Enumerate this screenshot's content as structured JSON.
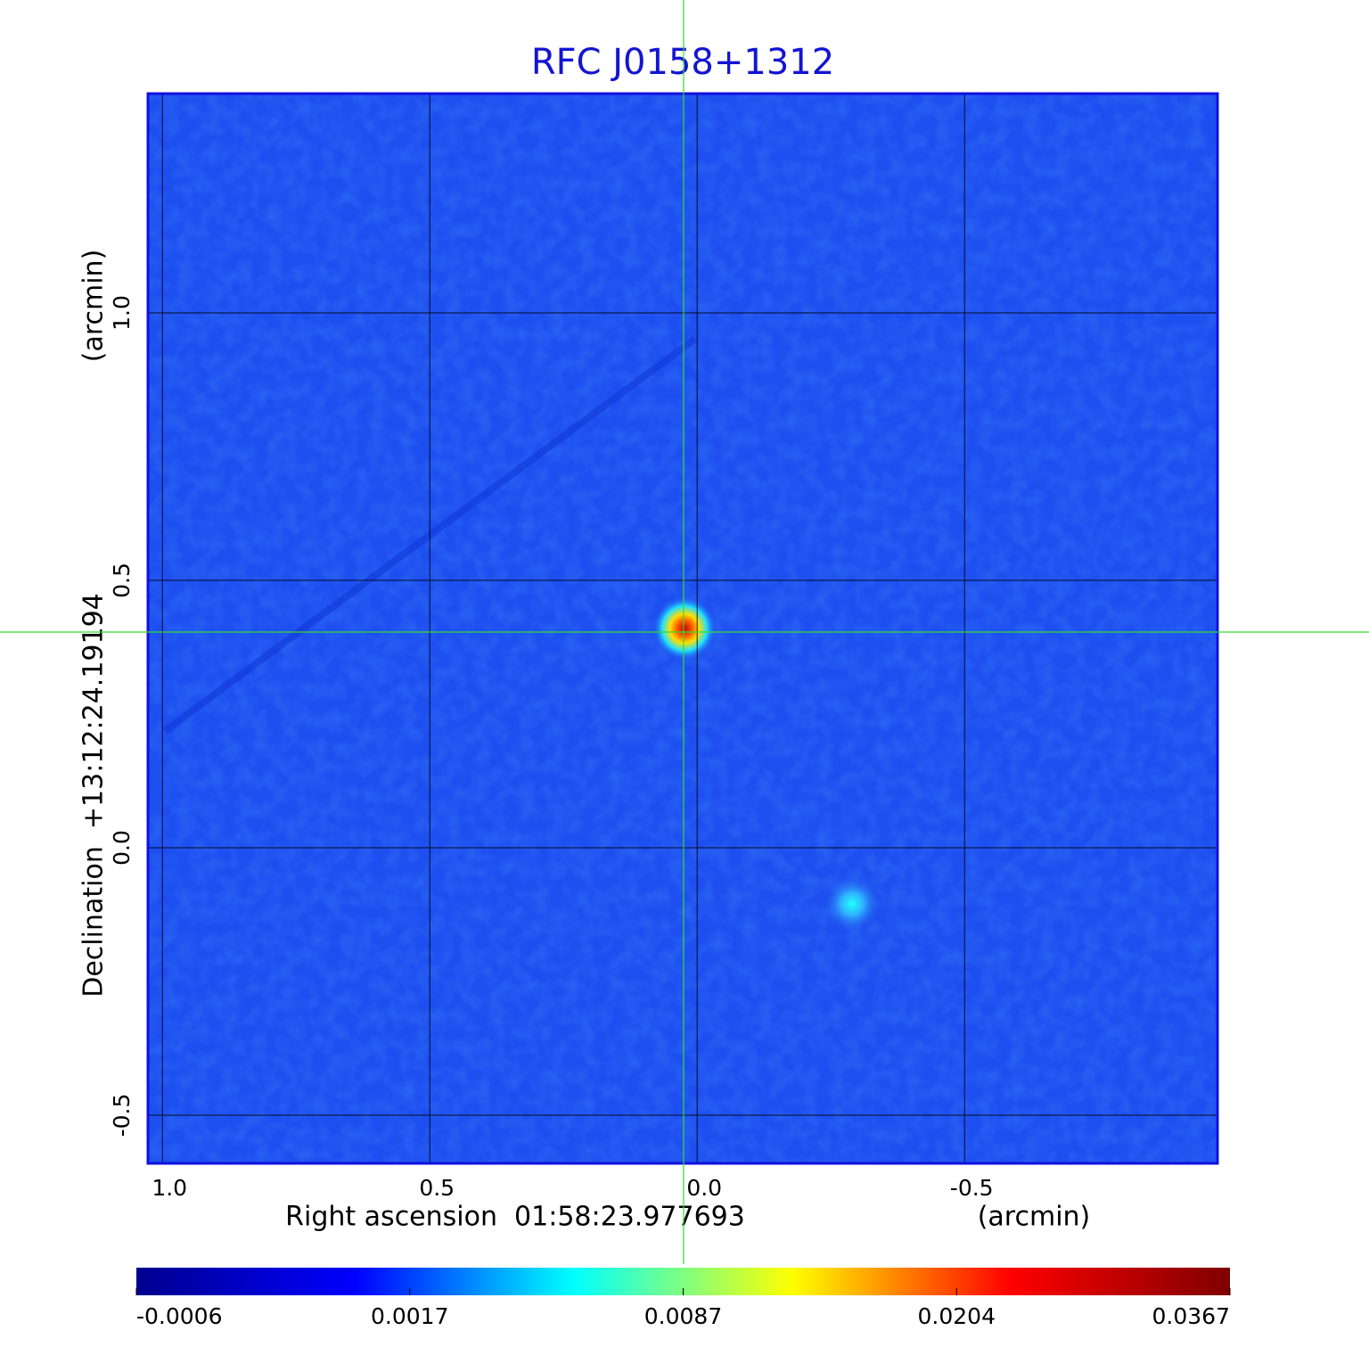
{
  "chart_data": {
    "type": "image",
    "title": "RFC J0158+1312",
    "x_label": "Right ascension  01:58:23.977693",
    "x_unit": "(arcmin)",
    "y_label": "Declination  +13:12:24.19194",
    "y_unit": "(arcmin)",
    "xlim": [
      1.027,
      -0.973
    ],
    "ylim": [
      -0.59,
      1.41
    ],
    "xticks": [
      {
        "value": 1,
        "label": "1.0"
      },
      0.5,
      {
        "value": 0,
        "label": "0.0"
      },
      -0.5
    ],
    "yticks": [
      {
        "value": 1,
        "label": "1.0"
      },
      0.5,
      {
        "value": 0,
        "label": "0.0"
      },
      -0.5
    ],
    "grid": true,
    "colorbar": {
      "ticks": [
        -0.0006,
        0.0017,
        0.0087,
        0.0204,
        0.0367
      ],
      "colormap": [
        "#00008f",
        "#0000ff",
        "#00ffff",
        "#ffff00",
        "#ff0000",
        "#800000"
      ]
    }
  }
}
